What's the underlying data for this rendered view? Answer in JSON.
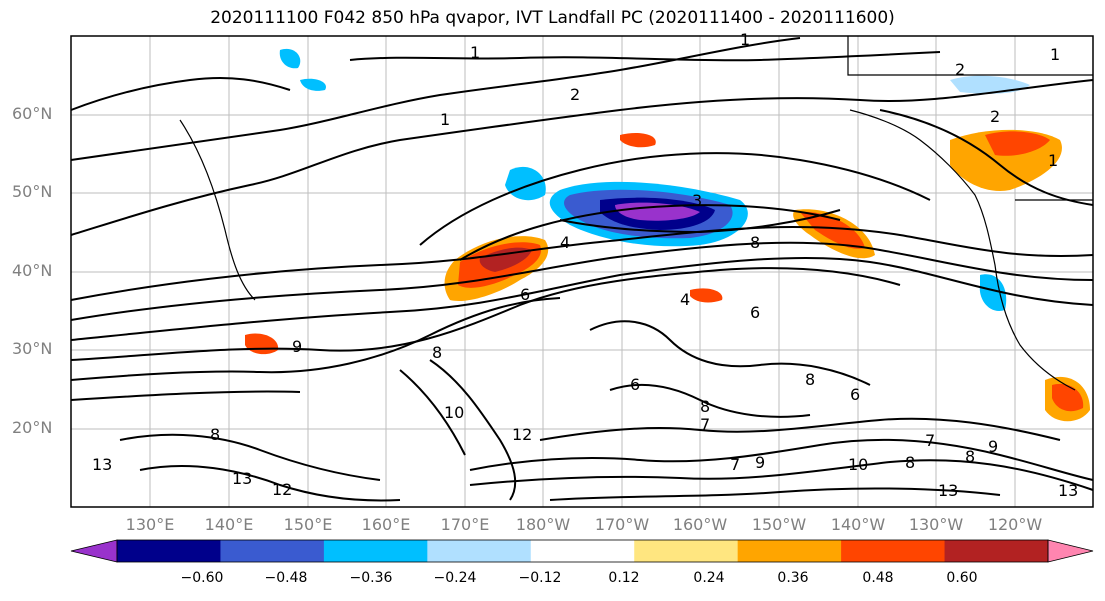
{
  "title": "2020111100 F042 850 hPa qvapor, IVT Landfall PC (2020111400 - 2020111600)",
  "lat_labels": [
    "60°N",
    "50°N",
    "40°N",
    "30°N",
    "20°N"
  ],
  "lon_labels": [
    "130°E",
    "140°E",
    "150°E",
    "160°E",
    "170°E",
    "180°W",
    "170°W",
    "160°W",
    "150°W",
    "140°W",
    "130°W",
    "120°W"
  ],
  "colorbar": {
    "colors": [
      "#9932cc",
      "#00008b",
      "#3a5bd0",
      "#00bfff",
      "#b0e0ff",
      "#ffffff",
      "#ffe680",
      "#ffa500",
      "#ff4500",
      "#b22222",
      "#ff85b0"
    ],
    "tick_labels": [
      "−0.60",
      "−0.48",
      "−0.36",
      "−0.24",
      "−0.12",
      "0.12",
      "0.24",
      "0.36",
      "0.48",
      "0.60"
    ]
  },
  "contour_labels": [
    "1",
    "2",
    "1",
    "1",
    "2",
    "1",
    "2",
    "1",
    "4",
    "8",
    "3",
    "4",
    "6",
    "6",
    "8",
    "7",
    "6",
    "8",
    "9",
    "10",
    "8",
    "6",
    "7",
    "9",
    "12",
    "10",
    "13",
    "12",
    "13",
    "13",
    "13",
    "7",
    "9",
    "8",
    "8",
    "8"
  ]
}
